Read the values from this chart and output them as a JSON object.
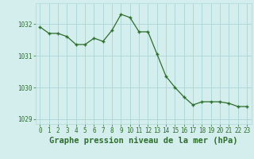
{
  "x": [
    0,
    1,
    2,
    3,
    4,
    5,
    6,
    7,
    8,
    9,
    10,
    11,
    12,
    13,
    14,
    15,
    16,
    17,
    18,
    19,
    20,
    21,
    22,
    23
  ],
  "y": [
    1031.9,
    1031.7,
    1031.7,
    1031.6,
    1031.35,
    1031.35,
    1031.55,
    1031.45,
    1031.8,
    1032.3,
    1032.2,
    1031.75,
    1031.75,
    1031.05,
    1030.35,
    1030.0,
    1029.7,
    1029.45,
    1029.55,
    1029.55,
    1029.55,
    1029.5,
    1029.4,
    1029.4
  ],
  "ylim": [
    1028.85,
    1032.65
  ],
  "yticks": [
    1029,
    1030,
    1031,
    1032
  ],
  "xticks": [
    0,
    1,
    2,
    3,
    4,
    5,
    6,
    7,
    8,
    9,
    10,
    11,
    12,
    13,
    14,
    15,
    16,
    17,
    18,
    19,
    20,
    21,
    22,
    23
  ],
  "line_color": "#2d6e2d",
  "marker_color": "#2d6e2d",
  "bg_color": "#d4eeee",
  "grid_color": "#b0d8d8",
  "xlabel": "Graphe pression niveau de la mer (hPa)",
  "tick_label_color": "#2d6e2d",
  "tick_fontsize": 5.5,
  "xlabel_fontsize": 7.5
}
